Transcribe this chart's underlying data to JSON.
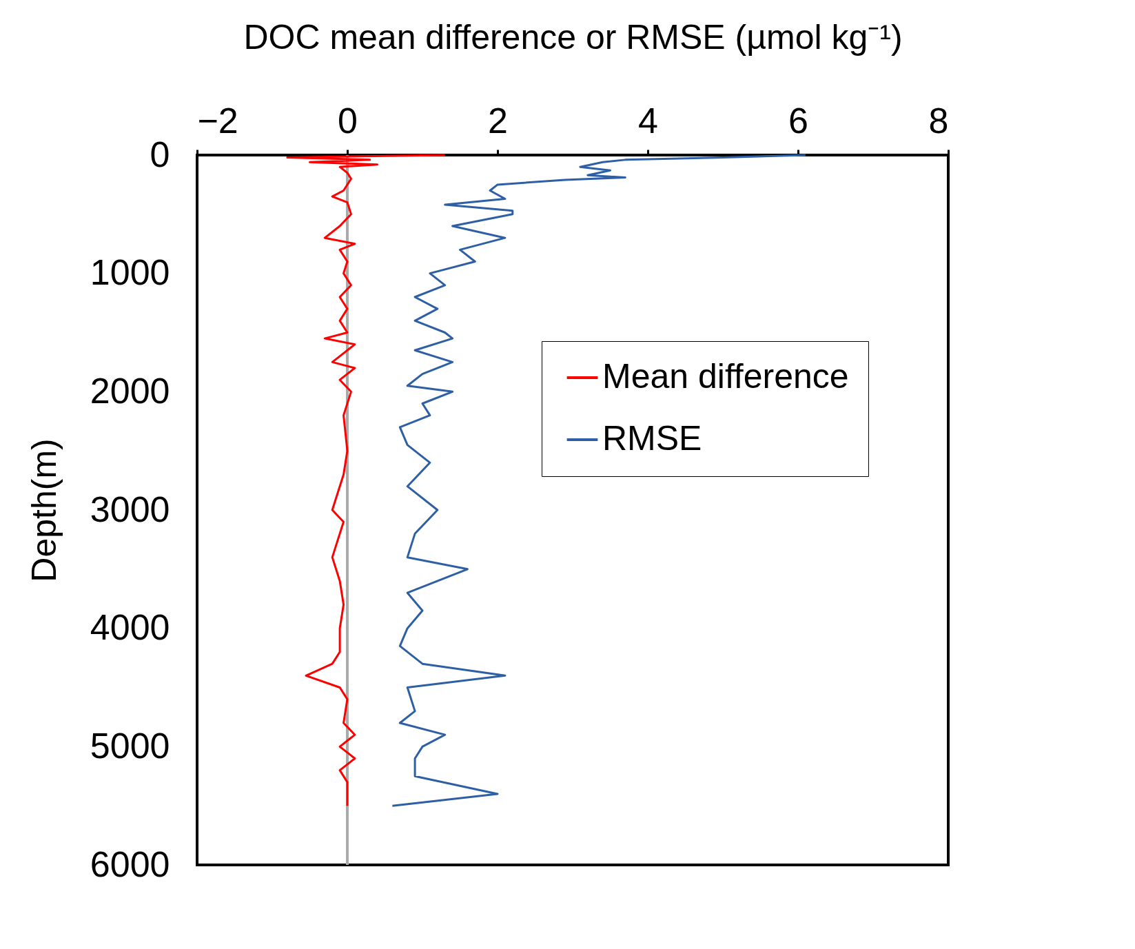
{
  "chart_data": {
    "type": "line",
    "orientation": "horizontal",
    "xlabel": "DOC mean difference or RMSE (µmol kg⁻¹)",
    "ylabel": "Depth(m)",
    "xlim": [
      -2,
      8
    ],
    "xticks": [
      -2,
      0,
      2,
      4,
      6,
      8
    ],
    "ylim": [
      6000,
      0
    ],
    "yticks": [
      0,
      1000,
      2000,
      3000,
      4000,
      5000,
      6000
    ],
    "grid": false,
    "legend": "right",
    "marker": "none",
    "line_style": "solid",
    "ref_lines": [
      {
        "axis": "x",
        "value": 0,
        "color": "#aaaaaa"
      }
    ],
    "series": [
      {
        "name": "Mean difference",
        "color": "#ff0000",
        "x": [
          0,
          20,
          40,
          60,
          80,
          100,
          150,
          200,
          300,
          350,
          400,
          500,
          600,
          700,
          750,
          800,
          900,
          1000,
          1100,
          1200,
          1300,
          1400,
          1500,
          1550,
          1600,
          1700,
          1750,
          1800,
          1900,
          2000,
          2200,
          2500,
          2700,
          3000,
          3100,
          3400,
          3600,
          3800,
          4000,
          4200,
          4300,
          4400,
          4500,
          4600,
          4800,
          4900,
          5000,
          5100,
          5200,
          5300,
          5500
        ],
        "values": [
          1.3,
          -0.8,
          0.3,
          -0.5,
          0.4,
          -0.1,
          0.0,
          0.05,
          -0.05,
          -0.2,
          0.0,
          0.05,
          -0.1,
          -0.3,
          0.1,
          -0.1,
          0.0,
          -0.05,
          0.05,
          -0.1,
          0.0,
          -0.1,
          0.0,
          -0.3,
          0.1,
          -0.1,
          -0.2,
          0.1,
          -0.1,
          0.05,
          -0.05,
          0.0,
          -0.05,
          -0.2,
          -0.05,
          -0.2,
          -0.1,
          -0.05,
          -0.1,
          -0.1,
          -0.2,
          -0.55,
          -0.1,
          0.0,
          -0.05,
          0.1,
          -0.1,
          0.1,
          -0.1,
          0.0,
          0.0
        ]
      },
      {
        "name": "RMSE",
        "color": "#2e5fa5",
        "x": [
          0,
          20,
          40,
          60,
          100,
          130,
          170,
          190,
          210,
          250,
          300,
          370,
          420,
          470,
          500,
          600,
          700,
          800,
          900,
          1000,
          1100,
          1200,
          1300,
          1400,
          1500,
          1550,
          1650,
          1750,
          1850,
          1950,
          2000,
          2100,
          2200,
          2300,
          2450,
          2600,
          2800,
          3000,
          3200,
          3400,
          3500,
          3700,
          3850,
          4000,
          4150,
          4300,
          4400,
          4500,
          4700,
          4800,
          4900,
          5000,
          5100,
          5250,
          5400,
          5500
        ],
        "values": [
          6.1,
          5.0,
          3.7,
          3.4,
          3.1,
          3.5,
          3.2,
          3.7,
          2.9,
          2.0,
          1.9,
          2.1,
          1.3,
          2.2,
          2.2,
          1.4,
          2.1,
          1.5,
          1.7,
          1.1,
          1.3,
          0.9,
          1.2,
          0.9,
          1.3,
          1.4,
          0.9,
          1.4,
          1.0,
          0.8,
          1.4,
          1.0,
          1.1,
          0.7,
          0.8,
          1.1,
          0.8,
          1.2,
          0.9,
          0.8,
          1.6,
          0.8,
          1.0,
          0.8,
          0.7,
          1.0,
          2.1,
          0.8,
          0.9,
          0.7,
          1.3,
          1.0,
          0.9,
          0.9,
          2.0,
          0.6
        ]
      }
    ]
  }
}
